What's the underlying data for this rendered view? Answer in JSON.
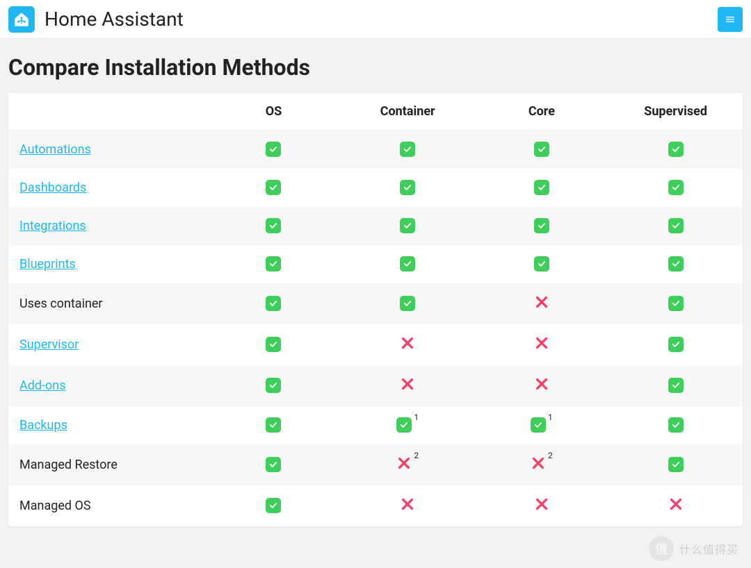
{
  "header": {
    "brand": "Home Assistant"
  },
  "page": {
    "title": "Compare Installation Methods"
  },
  "colors": {
    "accent": "#1fb8f5",
    "check_bg": "#3ecf5b",
    "cross": "#f43e6a",
    "link": "#1fb8f5",
    "page_bg": "#f2f2f2",
    "card_bg": "#ffffff",
    "row_alt_bg": "#f7f7f7",
    "text": "#212121"
  },
  "table": {
    "columns": [
      "",
      "OS",
      "Container",
      "Core",
      "Supervised"
    ],
    "rows": [
      {
        "label": "Automations",
        "link": true,
        "cells": [
          {
            "v": "check"
          },
          {
            "v": "check"
          },
          {
            "v": "check"
          },
          {
            "v": "check"
          }
        ]
      },
      {
        "label": "Dashboards",
        "link": true,
        "cells": [
          {
            "v": "check"
          },
          {
            "v": "check"
          },
          {
            "v": "check"
          },
          {
            "v": "check"
          }
        ]
      },
      {
        "label": "Integrations",
        "link": true,
        "cells": [
          {
            "v": "check"
          },
          {
            "v": "check"
          },
          {
            "v": "check"
          },
          {
            "v": "check"
          }
        ]
      },
      {
        "label": "Blueprints",
        "link": true,
        "cells": [
          {
            "v": "check"
          },
          {
            "v": "check"
          },
          {
            "v": "check"
          },
          {
            "v": "check"
          }
        ]
      },
      {
        "label": "Uses container",
        "link": false,
        "cells": [
          {
            "v": "check"
          },
          {
            "v": "check"
          },
          {
            "v": "cross"
          },
          {
            "v": "check"
          }
        ]
      },
      {
        "label": "Supervisor",
        "link": true,
        "cells": [
          {
            "v": "check"
          },
          {
            "v": "cross"
          },
          {
            "v": "cross"
          },
          {
            "v": "check"
          }
        ]
      },
      {
        "label": "Add-ons",
        "link": true,
        "cells": [
          {
            "v": "check"
          },
          {
            "v": "cross"
          },
          {
            "v": "cross"
          },
          {
            "v": "check"
          }
        ]
      },
      {
        "label": "Backups",
        "link": true,
        "cells": [
          {
            "v": "check"
          },
          {
            "v": "check",
            "note": "1"
          },
          {
            "v": "check",
            "note": "1"
          },
          {
            "v": "check"
          }
        ]
      },
      {
        "label": "Managed Restore",
        "link": false,
        "cells": [
          {
            "v": "check"
          },
          {
            "v": "cross",
            "note": "2"
          },
          {
            "v": "cross",
            "note": "2"
          },
          {
            "v": "check"
          }
        ]
      },
      {
        "label": "Managed OS",
        "link": false,
        "cells": [
          {
            "v": "check"
          },
          {
            "v": "cross"
          },
          {
            "v": "cross"
          },
          {
            "v": "cross"
          }
        ]
      }
    ]
  },
  "watermark": {
    "badge": "值",
    "text": "什么值得买"
  }
}
